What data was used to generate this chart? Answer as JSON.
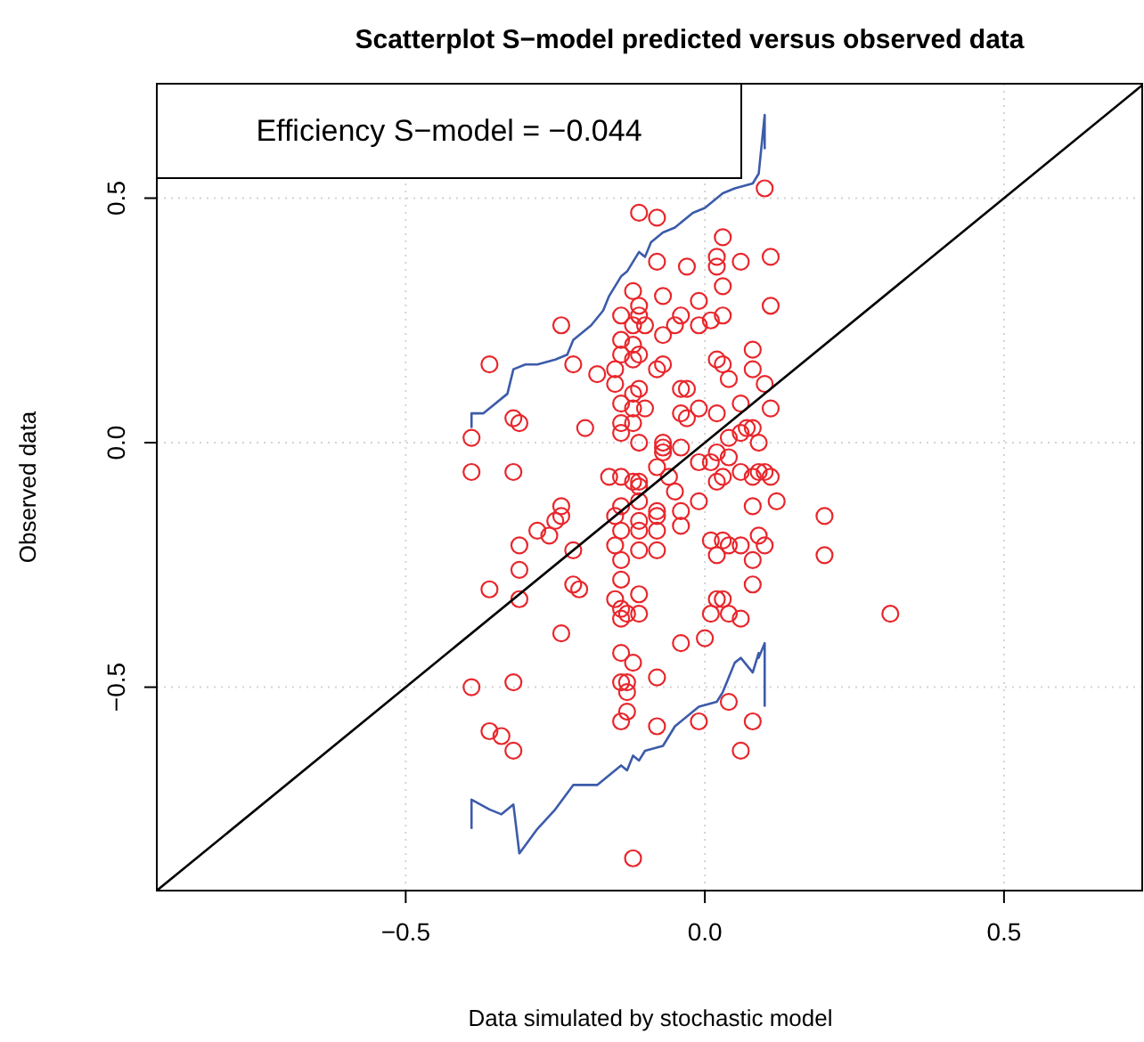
{
  "chart_data": {
    "type": "scatter",
    "title": "Scatterplot S−model predicted versus observed data",
    "xlabel": "Data simulated by stochastic model",
    "ylabel": "Observed data",
    "annotations": [
      "Efficiency S−model = −0.044"
    ],
    "xlim": [
      -0.916,
      0.731
    ],
    "ylim": [
      -0.916,
      0.734
    ],
    "xticks": [
      {
        "value": -0.5,
        "label": "−0.5"
      },
      {
        "value": 0,
        "label": "0.0"
      },
      {
        "value": 0.5,
        "label": "0.5"
      }
    ],
    "yticks": [
      {
        "value": -0.5,
        "label": "−0.5"
      },
      {
        "value": 0,
        "label": "0.0"
      },
      {
        "value": 0.5,
        "label": "0.5"
      }
    ],
    "grid": true,
    "series": [
      {
        "color": "#e8262b",
        "marker": "circle",
        "x": [
          0.1,
          -0.11,
          -0.08,
          0.03,
          0.11,
          -0.08,
          -0.03,
          0.02,
          0.02,
          0.06,
          0.03,
          -0.12,
          -0.11,
          -0.07,
          -0.01,
          0.11,
          -0.11,
          -0.14,
          -0.1,
          -0.12,
          -0.04,
          -0.05,
          -0.01,
          0.01,
          0.03,
          -0.24,
          -0.14,
          -0.07,
          -0.12,
          -0.14,
          -0.11,
          -0.12,
          -0.07,
          -0.08,
          0.02,
          0.03,
          0.08,
          0.08,
          -0.36,
          -0.22,
          -0.18,
          -0.15,
          0.04,
          0.1,
          -0.15,
          -0.11,
          -0.04,
          -0.03,
          -0.12,
          -0.14,
          -0.1,
          -0.12,
          -0.01,
          0.06,
          0.11,
          -0.14,
          -0.12,
          -0.04,
          -0.03,
          0.02,
          -0.31,
          -0.32,
          -0.2,
          0.08,
          0.07,
          -0.14,
          -0.11,
          -0.07,
          -0.07,
          -0.04,
          0.04,
          0.06,
          0.09,
          -0.39,
          -0.39,
          -0.32,
          -0.16,
          -0.14,
          -0.12,
          -0.11,
          -0.11,
          -0.07,
          -0.08,
          -0.06,
          -0.01,
          0.01,
          0.02,
          0.04,
          0.02,
          0.03,
          0.06,
          0.09,
          0.1,
          0.11,
          0.08,
          -0.05,
          -0.01,
          0.12,
          0.08,
          -0.24,
          -0.14,
          -0.11,
          -0.08,
          -0.04,
          -0.15,
          -0.11,
          -0.08,
          -0.24,
          -0.25,
          -0.28,
          -0.26,
          -0.08,
          -0.04,
          -0.14,
          -0.11,
          0.2,
          -0.31,
          -0.22,
          0.2,
          -0.15,
          -0.11,
          -0.08,
          0.01,
          0.03,
          0.04,
          0.06,
          0.02,
          0.09,
          0.1,
          0.08,
          0.08,
          -0.31,
          -0.14,
          -0.14,
          -0.11,
          -0.36,
          -0.22,
          -0.21,
          -0.31,
          -0.15,
          -0.14,
          -0.11,
          -0.14,
          -0.13,
          0.02,
          0.03,
          0.01,
          0.04,
          0.06,
          0.31,
          -0.24,
          -0.14,
          -0.12,
          -0.04,
          0.0,
          -0.39,
          -0.32,
          -0.14,
          -0.13,
          -0.13,
          -0.08,
          -0.13,
          -0.14,
          -0.36,
          -0.34,
          -0.32,
          -0.08,
          -0.01,
          0.04,
          0.08,
          0.06,
          -0.12
        ],
        "values": [
          0.52,
          0.47,
          0.46,
          0.42,
          0.38,
          0.37,
          0.36,
          0.38,
          0.36,
          0.37,
          0.32,
          0.31,
          0.28,
          0.3,
          0.29,
          0.28,
          0.26,
          0.26,
          0.24,
          0.24,
          0.26,
          0.24,
          0.24,
          0.25,
          0.26,
          0.24,
          0.21,
          0.22,
          0.2,
          0.18,
          0.18,
          0.17,
          0.16,
          0.15,
          0.17,
          0.16,
          0.19,
          0.15,
          0.16,
          0.16,
          0.14,
          0.15,
          0.13,
          0.12,
          0.12,
          0.11,
          0.11,
          0.11,
          0.1,
          0.08,
          0.07,
          0.07,
          0.07,
          0.08,
          0.07,
          0.04,
          0.04,
          0.06,
          0.05,
          0.06,
          0.04,
          0.05,
          0.03,
          0.03,
          0.03,
          0.02,
          0.0,
          0.0,
          -0.01,
          -0.01,
          0.01,
          0.02,
          0.0,
          0.01,
          -0.06,
          -0.06,
          -0.07,
          -0.07,
          -0.08,
          -0.09,
          -0.08,
          -0.02,
          -0.05,
          -0.07,
          -0.04,
          -0.04,
          -0.02,
          -0.03,
          -0.08,
          -0.07,
          -0.06,
          -0.06,
          -0.06,
          -0.07,
          -0.07,
          -0.1,
          -0.12,
          -0.12,
          -0.13,
          -0.13,
          -0.13,
          -0.12,
          -0.14,
          -0.14,
          -0.15,
          -0.16,
          -0.15,
          -0.15,
          -0.16,
          -0.18,
          -0.19,
          -0.18,
          -0.17,
          -0.18,
          -0.18,
          -0.15,
          -0.21,
          -0.22,
          -0.23,
          -0.21,
          -0.22,
          -0.22,
          -0.2,
          -0.2,
          -0.21,
          -0.21,
          -0.23,
          -0.19,
          -0.21,
          -0.24,
          -0.29,
          -0.26,
          -0.24,
          -0.28,
          -0.31,
          -0.3,
          -0.29,
          -0.3,
          -0.32,
          -0.32,
          -0.34,
          -0.35,
          -0.36,
          -0.35,
          -0.32,
          -0.32,
          -0.35,
          -0.35,
          -0.36,
          -0.35,
          -0.39,
          -0.43,
          -0.45,
          -0.41,
          -0.4,
          -0.5,
          -0.49,
          -0.49,
          -0.49,
          -0.51,
          -0.48,
          -0.55,
          -0.57,
          -0.59,
          -0.6,
          -0.63,
          -0.58,
          -0.57,
          -0.53,
          -0.57,
          -0.63,
          -0.85
        ]
      },
      {
        "type": "line",
        "color": "#3c5ba9",
        "line_style": "solid",
        "x": [
          -0.39,
          -0.39,
          -0.37,
          -0.33,
          -0.32,
          -0.3,
          -0.28,
          -0.25,
          -0.23,
          -0.22,
          -0.19,
          -0.17,
          -0.16,
          -0.14,
          -0.13,
          -0.12,
          -0.11,
          -0.1,
          -0.09,
          -0.07,
          -0.05,
          -0.02,
          0.0,
          0.03,
          0.05,
          0.08,
          0.09,
          0.1,
          0.1
        ],
        "values": [
          0.03,
          0.06,
          0.06,
          0.1,
          0.15,
          0.16,
          0.16,
          0.17,
          0.18,
          0.21,
          0.24,
          0.27,
          0.3,
          0.34,
          0.35,
          0.37,
          0.39,
          0.38,
          0.41,
          0.43,
          0.44,
          0.47,
          0.48,
          0.51,
          0.52,
          0.53,
          0.55,
          0.67,
          0.6
        ]
      },
      {
        "type": "line",
        "color": "#3c5ba9",
        "line_style": "solid",
        "x": [
          -0.39,
          -0.39,
          -0.36,
          -0.34,
          -0.32,
          -0.31,
          -0.28,
          -0.25,
          -0.22,
          -0.18,
          -0.16,
          -0.14,
          -0.13,
          -0.12,
          -0.11,
          -0.1,
          -0.07,
          -0.05,
          -0.02,
          -0.01,
          0.02,
          0.03,
          0.04,
          0.05,
          0.06,
          0.08,
          0.09,
          0.09,
          0.1,
          0.1
        ],
        "values": [
          -0.79,
          -0.73,
          -0.75,
          -0.76,
          -0.74,
          -0.84,
          -0.79,
          -0.75,
          -0.7,
          -0.7,
          -0.68,
          -0.66,
          -0.67,
          -0.64,
          -0.65,
          -0.63,
          -0.62,
          -0.58,
          -0.55,
          -0.54,
          -0.53,
          -0.51,
          -0.48,
          -0.45,
          -0.44,
          -0.47,
          -0.43,
          -0.44,
          -0.41,
          -0.54
        ]
      },
      {
        "type": "line",
        "color": "#000000",
        "line_style": "solid",
        "x": [
          -0.916,
          0.731
        ],
        "values": [
          -0.916,
          0.731
        ]
      }
    ]
  }
}
